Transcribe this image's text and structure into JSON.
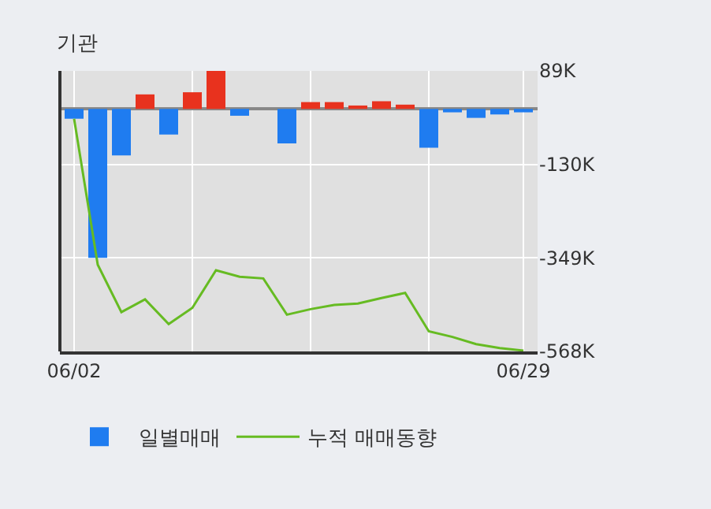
{
  "chart_data": {
    "type": "bar",
    "title": "기관",
    "categories": [
      "06/02",
      null,
      null,
      null,
      null,
      null,
      null,
      null,
      null,
      null,
      null,
      null,
      null,
      null,
      null,
      null,
      null,
      null,
      null,
      "06/29"
    ],
    "series": [
      {
        "name": "일별매매",
        "colors": [
          "#1f7cf0",
          "#1f7cf0",
          "#1f7cf0",
          "#e8321e",
          "#1f7cf0",
          "#e8321e",
          "#e8321e",
          "#1f7cf0",
          "#1f7cf0",
          "#1f7cf0",
          "#e8321e",
          "#e8321e",
          "#e8321e",
          "#e8321e",
          "#e8321e",
          "#1f7cf0",
          "#1f7cf0",
          "#1f7cf0",
          "#1f7cf0",
          "#1f7cf0"
        ],
        "values": [
          -23,
          -349,
          -109,
          34,
          -60,
          39,
          89,
          -16,
          0,
          -81,
          16,
          16,
          8,
          18,
          10,
          -91,
          -8,
          -21,
          -13,
          -8
        ]
      },
      {
        "name": "누적 매매동향",
        "type": "line",
        "color": "#66bb22",
        "values": [
          -23,
          -365,
          -476,
          -446,
          -504,
          -466,
          -378,
          -393,
          -397,
          -482,
          -469,
          -459,
          -456,
          -443,
          -431,
          -521,
          -534,
          -551,
          -560,
          -566
        ]
      }
    ],
    "ylim": [
      -568,
      89
    ],
    "yticks": [
      {
        "value": 89,
        "label": "89K"
      },
      {
        "value": -130,
        "label": "-130K"
      },
      {
        "value": -349,
        "label": "-349K"
      },
      {
        "value": -568,
        "label": "-568K"
      }
    ],
    "grid": true,
    "legend": "bottom",
    "marker": "none",
    "line_style": "solid"
  }
}
